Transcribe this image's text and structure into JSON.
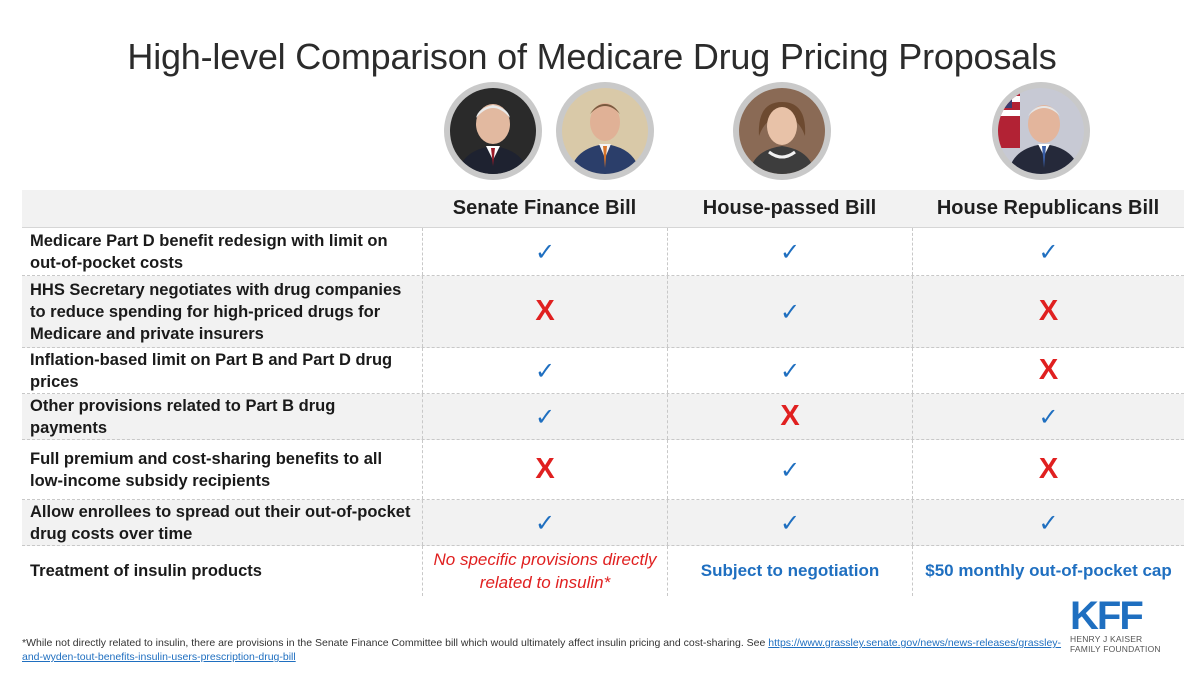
{
  "title": "High-level Comparison of Medicare Drug Pricing Proposals",
  "columns": [
    "Senate Finance Bill",
    "House-passed Bill",
    "House Republicans Bill"
  ],
  "rows": [
    {
      "label": "Medicare Part D benefit redesign with limit on out-of-pocket costs",
      "marks": [
        "check",
        "check",
        "check"
      ]
    },
    {
      "label": "HHS Secretary negotiates with drug companies to reduce spending for high-priced drugs for Medicare and private insurers",
      "marks": [
        "x",
        "check",
        "x"
      ]
    },
    {
      "label": "Inflation-based limit on Part B and Part D drug prices",
      "marks": [
        "check",
        "check",
        "x"
      ]
    },
    {
      "label": "Other provisions related to Part B drug payments",
      "marks": [
        "check",
        "x",
        "check"
      ]
    },
    {
      "label": "Full premium and cost-sharing benefits to all low-income subsidy recipients",
      "marks": [
        "x",
        "check",
        "x"
      ]
    },
    {
      "label": "Allow enrollees to spread out their out-of-pocket drug costs over time",
      "marks": [
        "check",
        "check",
        "check"
      ]
    },
    {
      "label": "Treatment of insulin products",
      "texts": [
        "No specific provisions directly related to insulin*",
        "Subject to negotiation",
        "$50 monthly out-of-pocket cap"
      ]
    }
  ],
  "symbols": {
    "check": "✓",
    "x": "X"
  },
  "footnote": {
    "text": "*While not directly related to insulin, there are provisions in the Senate Finance Committee bill which would ultimately affect insulin pricing and cost-sharing. See ",
    "link": "https://www.grassley.senate.gov/news/news-releases/grassley-and-wyden-tout-benefits-insulin-users-prescription-drug-bill"
  },
  "logo": {
    "letters": "KFF",
    "line1": "HENRY J KAISER",
    "line2": "FAMILY FOUNDATION"
  },
  "colors": {
    "accent": "#1f6fc0",
    "negative": "#e02020"
  }
}
